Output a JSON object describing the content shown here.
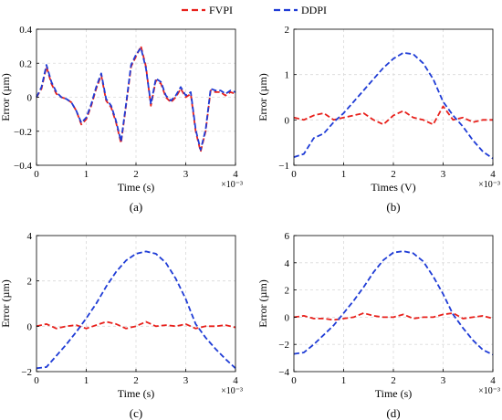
{
  "legend": {
    "entries": [
      {
        "name": "FVPI",
        "color": "#e8211c"
      },
      {
        "name": "DDPI",
        "color": "#1f3cd6"
      }
    ]
  },
  "chart_data": [
    {
      "panel": "(a)",
      "type": "line",
      "xlabel": "Time (s)",
      "ylabel": "Error (µm)",
      "x_multiplier": "×10⁻³",
      "xlim": [
        0,
        4
      ],
      "ylim": [
        -0.4,
        0.4
      ],
      "xticks": [
        0,
        1,
        2,
        3,
        4
      ],
      "yticks": [
        -0.4,
        -0.2,
        0,
        0.2,
        0.4
      ],
      "ytick_labels": [
        "−0.4",
        "−0.2",
        "0",
        "0.2",
        "0.4"
      ],
      "grid": true,
      "series": [
        {
          "name": "FVPI",
          "x": [
            0,
            0.1,
            0.2,
            0.3,
            0.4,
            0.5,
            0.6,
            0.7,
            0.8,
            0.9,
            1.0,
            1.1,
            1.2,
            1.3,
            1.4,
            1.5,
            1.6,
            1.7,
            1.8,
            1.9,
            2.0,
            2.1,
            2.2,
            2.3,
            2.4,
            2.5,
            2.6,
            2.7,
            2.8,
            2.9,
            3.0,
            3.1,
            3.2,
            3.3,
            3.4,
            3.5,
            3.6,
            3.7,
            3.8,
            3.9,
            4.0
          ],
          "y": [
            0.0,
            0.05,
            0.18,
            0.08,
            0.02,
            0.0,
            -0.01,
            -0.03,
            -0.08,
            -0.16,
            -0.13,
            -0.05,
            0.05,
            0.13,
            -0.02,
            -0.06,
            -0.15,
            -0.27,
            -0.05,
            0.18,
            0.24,
            0.3,
            0.18,
            -0.05,
            0.1,
            0.08,
            0.0,
            -0.03,
            0.0,
            0.05,
            0.0,
            0.02,
            -0.2,
            -0.32,
            -0.2,
            0.04,
            0.03,
            0.03,
            0.01,
            0.03,
            0.02
          ]
        },
        {
          "name": "DDPI",
          "x": [
            0,
            0.1,
            0.2,
            0.3,
            0.4,
            0.5,
            0.6,
            0.7,
            0.8,
            0.9,
            1.0,
            1.1,
            1.2,
            1.3,
            1.4,
            1.5,
            1.6,
            1.7,
            1.8,
            1.9,
            2.0,
            2.1,
            2.2,
            2.3,
            2.4,
            2.5,
            2.6,
            2.7,
            2.8,
            2.9,
            3.0,
            3.1,
            3.2,
            3.3,
            3.4,
            3.5,
            3.6,
            3.7,
            3.8,
            3.9,
            4.0
          ],
          "y": [
            0.0,
            0.06,
            0.19,
            0.09,
            0.03,
            0.0,
            -0.01,
            -0.03,
            -0.08,
            -0.15,
            -0.12,
            -0.04,
            0.06,
            0.14,
            -0.01,
            -0.05,
            -0.14,
            -0.26,
            -0.04,
            0.19,
            0.25,
            0.29,
            0.17,
            -0.04,
            0.11,
            0.09,
            0.01,
            -0.02,
            0.01,
            0.06,
            0.01,
            0.03,
            -0.19,
            -0.31,
            -0.19,
            0.05,
            0.04,
            0.04,
            0.02,
            0.04,
            0.03
          ]
        }
      ]
    },
    {
      "panel": "(b)",
      "type": "line",
      "xlabel": "Times (V)",
      "ylabel": "Error (µm)",
      "x_multiplier": "×10⁻³",
      "xlim": [
        0,
        4
      ],
      "ylim": [
        -1,
        2
      ],
      "xticks": [
        0,
        1,
        2,
        3,
        4
      ],
      "yticks": [
        -1,
        0,
        1,
        2
      ],
      "ytick_labels": [
        "−1",
        "0",
        "1",
        "2"
      ],
      "grid": true,
      "series": [
        {
          "name": "FVPI",
          "x": [
            0,
            0.2,
            0.4,
            0.6,
            0.8,
            1.0,
            1.2,
            1.4,
            1.6,
            1.8,
            2.0,
            2.2,
            2.4,
            2.6,
            2.8,
            3.0,
            3.2,
            3.4,
            3.6,
            3.8,
            4.0
          ],
          "y": [
            0.05,
            0.0,
            0.1,
            0.15,
            0.0,
            0.05,
            0.1,
            0.15,
            0.0,
            -0.1,
            0.1,
            0.2,
            0.05,
            0.0,
            -0.1,
            0.3,
            0.0,
            0.05,
            -0.05,
            0.0,
            0.0
          ]
        },
        {
          "name": "DDPI",
          "x": [
            0,
            0.2,
            0.4,
            0.6,
            0.8,
            1.0,
            1.2,
            1.4,
            1.6,
            1.8,
            2.0,
            2.2,
            2.4,
            2.6,
            2.8,
            3.0,
            3.2,
            3.4,
            3.6,
            3.8,
            4.0
          ],
          "y": [
            -0.82,
            -0.75,
            -0.4,
            -0.3,
            -0.05,
            0.15,
            0.4,
            0.65,
            0.9,
            1.15,
            1.35,
            1.48,
            1.45,
            1.25,
            0.9,
            0.4,
            0.1,
            -0.15,
            -0.45,
            -0.7,
            -0.85
          ]
        }
      ]
    },
    {
      "panel": "(c)",
      "type": "line",
      "xlabel": "Time (s)",
      "ylabel": "Error (µm)",
      "x_multiplier": "×10⁻³",
      "xlim": [
        0,
        4
      ],
      "ylim": [
        -2,
        4
      ],
      "xticks": [
        0,
        1,
        2,
        3,
        4
      ],
      "yticks": [
        -2,
        0,
        2,
        4
      ],
      "ytick_labels": [
        "−2",
        "0",
        "2",
        "4"
      ],
      "grid": true,
      "series": [
        {
          "name": "FVPI",
          "x": [
            0,
            0.2,
            0.4,
            0.6,
            0.8,
            1.0,
            1.2,
            1.4,
            1.6,
            1.8,
            2.0,
            2.2,
            2.4,
            2.6,
            2.8,
            3.0,
            3.2,
            3.4,
            3.6,
            3.8,
            4.0
          ],
          "y": [
            0.0,
            0.1,
            -0.1,
            0.0,
            0.05,
            -0.1,
            0.05,
            0.2,
            0.1,
            -0.1,
            0.0,
            0.2,
            0.0,
            0.05,
            0.0,
            0.1,
            -0.1,
            0.0,
            0.0,
            0.05,
            -0.05
          ]
        },
        {
          "name": "DDPI",
          "x": [
            0,
            0.2,
            0.4,
            0.6,
            0.8,
            1.0,
            1.2,
            1.4,
            1.6,
            1.8,
            2.0,
            2.2,
            2.4,
            2.6,
            2.8,
            3.0,
            3.2,
            3.4,
            3.6,
            3.8,
            4.0
          ],
          "y": [
            -1.85,
            -1.8,
            -1.3,
            -0.8,
            -0.25,
            0.35,
            1.0,
            1.75,
            2.4,
            2.9,
            3.2,
            3.3,
            3.2,
            2.8,
            2.1,
            1.2,
            0.1,
            -0.5,
            -1.0,
            -1.45,
            -1.85
          ]
        }
      ]
    },
    {
      "panel": "(d)",
      "type": "line",
      "xlabel": "Time (s)",
      "ylabel": "Error (µm)",
      "x_multiplier": "×10⁻³",
      "xlim": [
        0,
        4
      ],
      "ylim": [
        -4,
        6
      ],
      "xticks": [
        0,
        1,
        2,
        3,
        4
      ],
      "yticks": [
        -4,
        -2,
        0,
        2,
        4,
        6
      ],
      "ytick_labels": [
        "−4",
        "−2",
        "0",
        "2",
        "4",
        "6"
      ],
      "grid": true,
      "series": [
        {
          "name": "FVPI",
          "x": [
            0,
            0.2,
            0.4,
            0.6,
            0.8,
            1.0,
            1.2,
            1.4,
            1.6,
            1.8,
            2.0,
            2.2,
            2.4,
            2.6,
            2.8,
            3.0,
            3.2,
            3.4,
            3.6,
            3.8,
            4.0
          ],
          "y": [
            0.0,
            0.1,
            -0.1,
            -0.1,
            -0.2,
            -0.1,
            0.0,
            0.3,
            0.1,
            0.0,
            0.0,
            0.2,
            -0.1,
            0.0,
            0.0,
            0.2,
            0.3,
            -0.1,
            0.0,
            0.1,
            -0.1
          ]
        },
        {
          "name": "DDPI",
          "x": [
            0,
            0.2,
            0.4,
            0.6,
            0.8,
            1.0,
            1.2,
            1.4,
            1.6,
            1.8,
            2.0,
            2.2,
            2.4,
            2.6,
            2.8,
            3.0,
            3.2,
            3.4,
            3.6,
            3.8,
            4.0
          ],
          "y": [
            -2.7,
            -2.6,
            -2.0,
            -1.3,
            -0.6,
            0.3,
            1.2,
            2.2,
            3.3,
            4.2,
            4.75,
            4.85,
            4.7,
            4.1,
            3.0,
            1.7,
            0.2,
            -0.8,
            -1.7,
            -2.4,
            -2.75
          ]
        }
      ]
    }
  ]
}
